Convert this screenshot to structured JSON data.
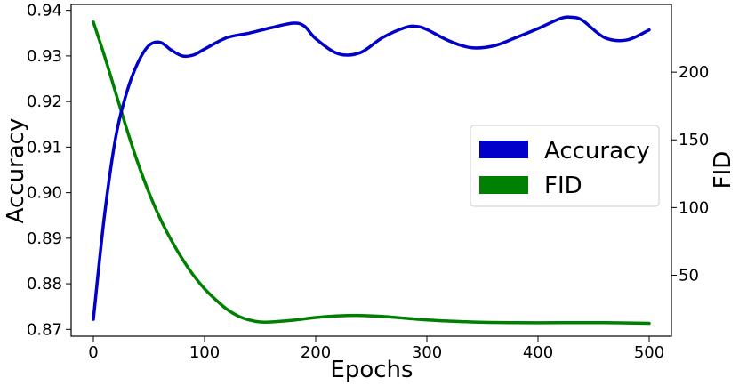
{
  "chart_data": {
    "type": "line",
    "xlabel": "Epochs",
    "ylabel_left": "Accuracy",
    "ylabel_right": "FID",
    "xlim": [
      -20,
      520
    ],
    "ylim_left": [
      0.8685,
      0.9413
    ],
    "ylim_right": [
      5,
      250
    ],
    "x_ticks": [
      0,
      100,
      200,
      300,
      400,
      500
    ],
    "y_ticks_left": [
      0.87,
      0.88,
      0.89,
      0.9,
      0.91,
      0.92,
      0.93,
      0.94
    ],
    "y_ticks_left_labels": [
      "0.87",
      "0.88",
      "0.89",
      "0.90",
      "0.91",
      "0.92",
      "0.93",
      "0.94"
    ],
    "y_ticks_right": [
      50,
      100,
      150,
      200
    ],
    "legend_placement": "center-right",
    "grid": false,
    "series": [
      {
        "name": "Accuracy",
        "axis": "left",
        "color": "#0000c8",
        "x": [
          0,
          10,
          20,
          30,
          40,
          50,
          60,
          70,
          80,
          90,
          100,
          120,
          140,
          160,
          180,
          190,
          200,
          220,
          240,
          260,
          280,
          290,
          300,
          320,
          340,
          360,
          380,
          400,
          420,
          430,
          440,
          460,
          480,
          500
        ],
        "y": [
          0.8722,
          0.895,
          0.912,
          0.922,
          0.9285,
          0.9323,
          0.933,
          0.9313,
          0.93,
          0.9302,
          0.9315,
          0.934,
          0.935,
          0.9362,
          0.9372,
          0.9365,
          0.9338,
          0.9305,
          0.9307,
          0.934,
          0.9362,
          0.9365,
          0.9358,
          0.9333,
          0.9318,
          0.9322,
          0.934,
          0.936,
          0.9382,
          0.9385,
          0.9378,
          0.934,
          0.9335,
          0.9357
        ]
      },
      {
        "name": "FID",
        "axis": "right",
        "color": "#008000",
        "x": [
          0,
          10,
          20,
          30,
          40,
          50,
          60,
          70,
          80,
          90,
          100,
          110,
          120,
          130,
          140,
          150,
          160,
          180,
          200,
          220,
          240,
          260,
          280,
          300,
          340,
          380,
          420,
          460,
          500
        ],
        "y": [
          237,
          212,
          185,
          158,
          133,
          111,
          92,
          76,
          62,
          50,
          40,
          32,
          25,
          20,
          17,
          15.5,
          15.5,
          16.8,
          18.8,
          20,
          20.3,
          19.6,
          18.3,
          17,
          15.5,
          15,
          15,
          15,
          14.5
        ]
      }
    ]
  }
}
